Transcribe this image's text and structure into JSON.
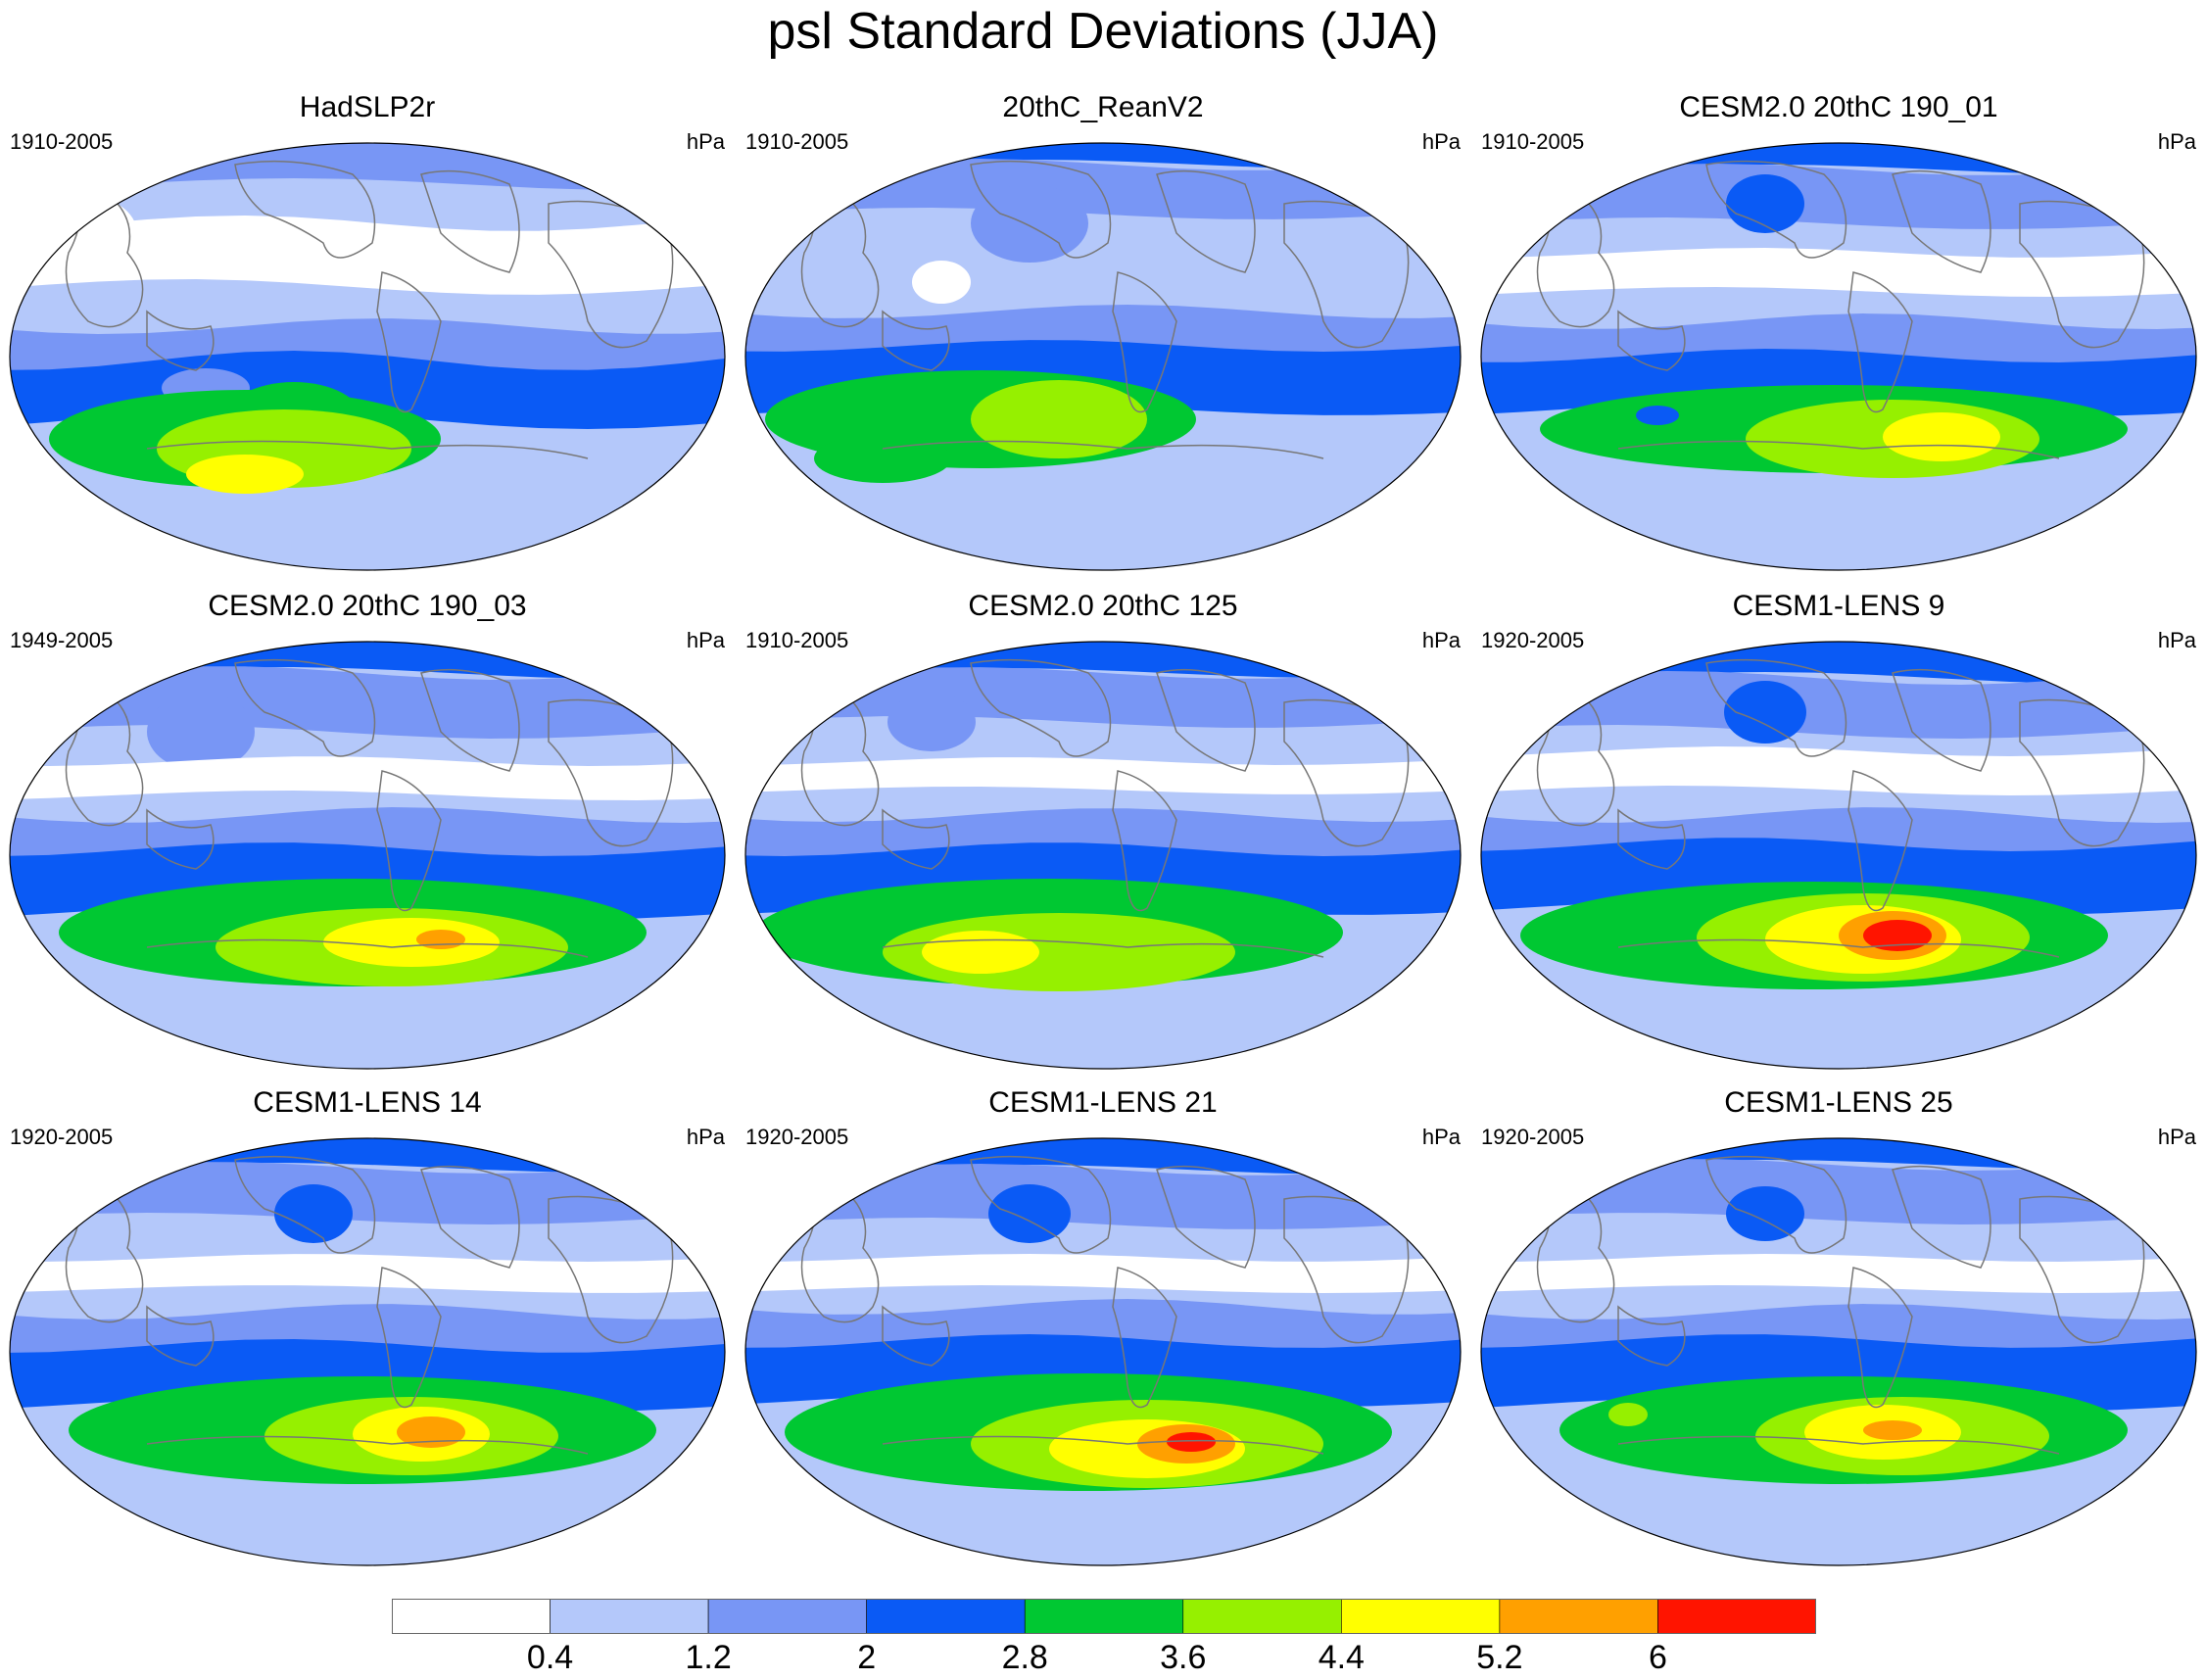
{
  "title": "psl Standard Deviations (JJA)",
  "panels": [
    {
      "title": "HadSLP2r",
      "period": "1910-2005",
      "unit": "hPa"
    },
    {
      "title": "20thC_ReanV2",
      "period": "1910-2005",
      "unit": "hPa"
    },
    {
      "title": "CESM2.0 20thC 190_01",
      "period": "1910-2005",
      "unit": "hPa"
    },
    {
      "title": "CESM2.0 20thC 190_03",
      "period": "1949-2005",
      "unit": "hPa"
    },
    {
      "title": "CESM2.0 20thC 125",
      "period": "1910-2005",
      "unit": "hPa"
    },
    {
      "title": "CESM1-LENS 9",
      "period": "1920-2005",
      "unit": "hPa"
    },
    {
      "title": "CESM1-LENS 14",
      "period": "1920-2005",
      "unit": "hPa"
    },
    {
      "title": "CESM1-LENS 21",
      "period": "1920-2005",
      "unit": "hPa"
    },
    {
      "title": "CESM1-LENS 25",
      "period": "1920-2005",
      "unit": "hPa"
    }
  ],
  "colorbar": {
    "labels": [
      "0.4",
      "1.2",
      "2",
      "2.8",
      "3.6",
      "4.4",
      "5.2",
      "6"
    ],
    "colors": [
      "#ffffff",
      "#b4c8fa",
      "#7896f5",
      "#0a5af5",
      "#00c832",
      "#96f000",
      "#ffff00",
      "#ffa000",
      "#ff1400"
    ]
  },
  "palette": {
    "white": "#ffffff",
    "lightblue": "#b4c8fa",
    "medblue": "#7896f5",
    "blue": "#0a5af5",
    "green": "#00c832",
    "lime": "#96f000",
    "yellow": "#ffff00",
    "orange": "#ffa000",
    "red": "#ff1400",
    "coast": "#777777"
  }
}
